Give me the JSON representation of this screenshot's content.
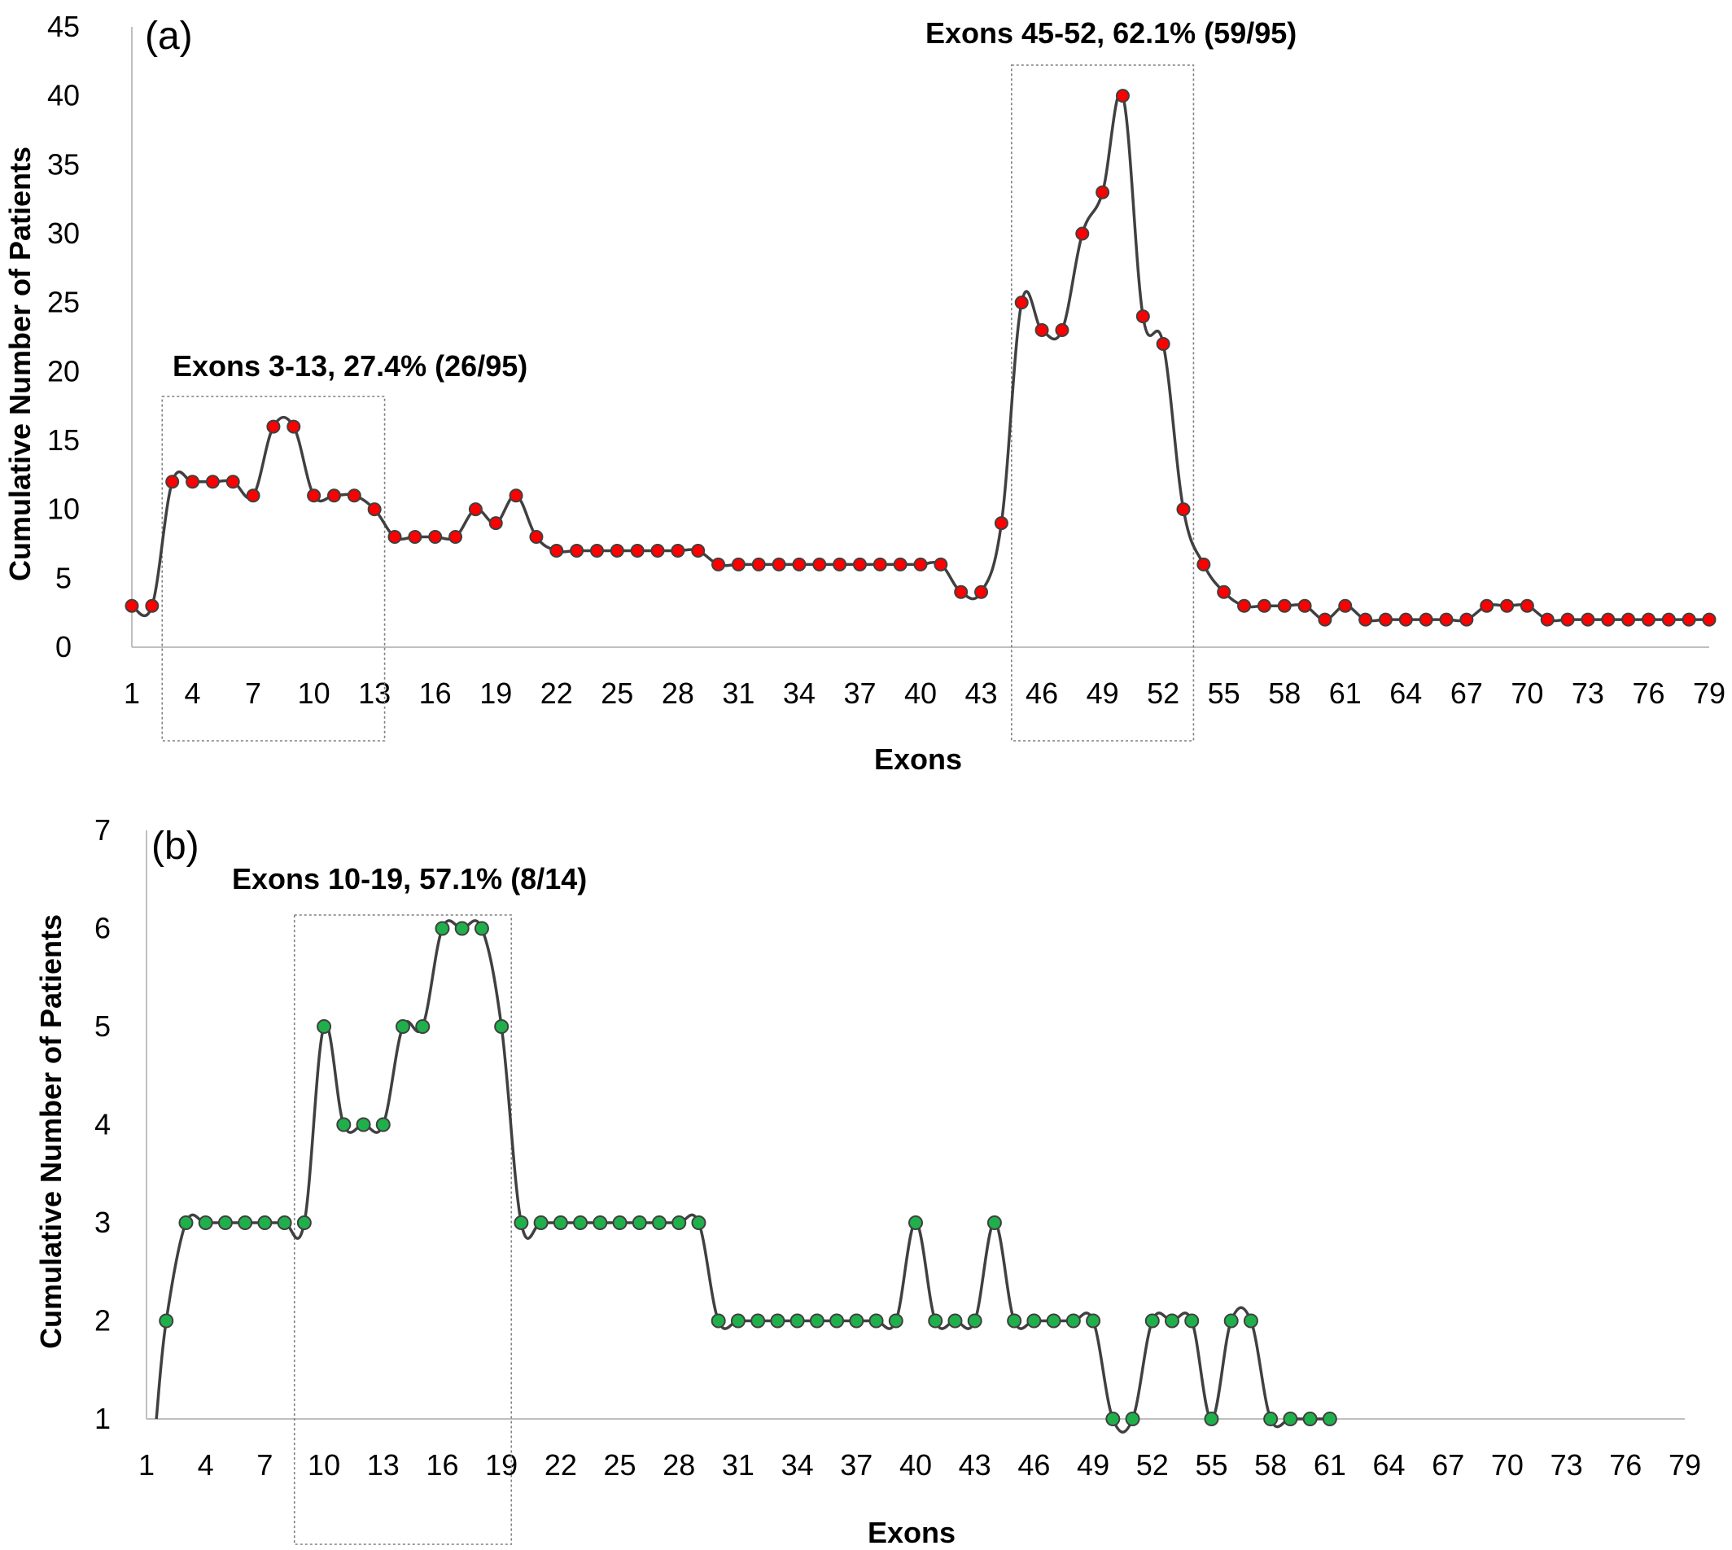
{
  "chart_data": [
    {
      "type": "line",
      "panel_label": "(a)",
      "xlabel": "Exons",
      "ylabel": "Cumulative Number of Patients",
      "ylim": [
        0,
        45
      ],
      "yticks": [
        0,
        5,
        10,
        15,
        20,
        25,
        30,
        35,
        40,
        45
      ],
      "xlim": [
        1,
        79
      ],
      "xticks": [
        1,
        4,
        7,
        10,
        13,
        16,
        19,
        22,
        25,
        28,
        31,
        34,
        37,
        40,
        43,
        46,
        49,
        52,
        55,
        58,
        61,
        64,
        67,
        70,
        73,
        76,
        79
      ],
      "marker_color": "#ff0000",
      "line_color": "#404040",
      "grid": false,
      "series": [
        {
          "x": [
            1,
            2,
            3,
            4,
            5,
            6,
            7,
            8,
            9,
            10,
            11,
            12,
            13,
            14,
            15,
            16,
            17,
            18,
            19,
            20,
            21,
            22,
            23,
            24,
            25,
            26,
            27,
            28,
            29,
            30,
            31,
            32,
            33,
            34,
            35,
            36,
            37,
            38,
            39,
            40,
            41,
            42,
            43,
            44,
            45,
            46,
            47,
            48,
            49,
            50,
            51,
            52,
            53,
            54,
            55,
            56,
            57,
            58,
            59,
            60,
            61,
            62,
            63,
            64,
            65,
            66,
            67,
            68,
            69,
            70,
            71,
            72,
            73,
            74,
            75,
            76,
            77,
            78,
            79
          ],
          "values": [
            3,
            3,
            12,
            12,
            12,
            12,
            11,
            16,
            16,
            11,
            11,
            11,
            10,
            8,
            8,
            8,
            8,
            10,
            9,
            11,
            8,
            7,
            7,
            7,
            7,
            7,
            7,
            7,
            7,
            6,
            6,
            6,
            6,
            6,
            6,
            6,
            6,
            6,
            6,
            6,
            6,
            4,
            4,
            9,
            25,
            23,
            23,
            30,
            33,
            40,
            24,
            22,
            10,
            6,
            4,
            3,
            3,
            3,
            3,
            2,
            3,
            2,
            2,
            2,
            2,
            2,
            2,
            3,
            3,
            3,
            2,
            2,
            2,
            2,
            2,
            2,
            2,
            2,
            2
          ]
        }
      ],
      "annotations": [
        {
          "text": "Exons 3-13, 27.4% (26/95)",
          "x_range": [
            3,
            13
          ]
        },
        {
          "text": "Exons 45-52, 62.1% (59/95)",
          "x_range": [
            45,
            53
          ]
        }
      ]
    },
    {
      "type": "line",
      "panel_label": "(b)",
      "xlabel": "Exons",
      "ylabel": "Cumulative Number of Patients",
      "ylim": [
        1,
        7
      ],
      "yticks": [
        1,
        2,
        3,
        4,
        5,
        6,
        7
      ],
      "xlim": [
        1,
        79
      ],
      "xticks": [
        1,
        4,
        7,
        10,
        13,
        16,
        19,
        22,
        25,
        28,
        31,
        34,
        37,
        40,
        43,
        46,
        49,
        52,
        55,
        58,
        61,
        64,
        67,
        70,
        73,
        76,
        79
      ],
      "marker_color": "#1fb04b",
      "line_color": "#404040",
      "grid": false,
      "series": [
        {
          "x": [
            2,
            3,
            4,
            5,
            6,
            7,
            8,
            9,
            10,
            11,
            12,
            13,
            14,
            15,
            16,
            17,
            18,
            19,
            20,
            21,
            22,
            23,
            24,
            25,
            26,
            27,
            28,
            29,
            30,
            31,
            32,
            33,
            34,
            35,
            36,
            37,
            38,
            39,
            40,
            41,
            42,
            43,
            44,
            45,
            46,
            47,
            48,
            49,
            50,
            51,
            52,
            53,
            54,
            55,
            56,
            57,
            58,
            59,
            60,
            61
          ],
          "values": [
            2,
            3,
            3,
            3,
            3,
            3,
            3,
            3,
            5,
            4,
            4,
            4,
            5,
            5,
            6,
            6,
            6,
            5,
            3,
            3,
            3,
            3,
            3,
            3,
            3,
            3,
            3,
            3,
            2,
            2,
            2,
            2,
            2,
            2,
            2,
            2,
            2,
            2,
            3,
            2,
            2,
            2,
            3,
            2,
            2,
            2,
            2,
            2,
            1,
            1,
            2,
            2,
            2,
            1,
            2,
            2,
            1,
            1,
            1,
            1
          ]
        }
      ],
      "annotations": [
        {
          "text": "Exons 10-19, 57.1% (8/14)",
          "x_range": [
            9,
            19
          ]
        }
      ]
    }
  ]
}
